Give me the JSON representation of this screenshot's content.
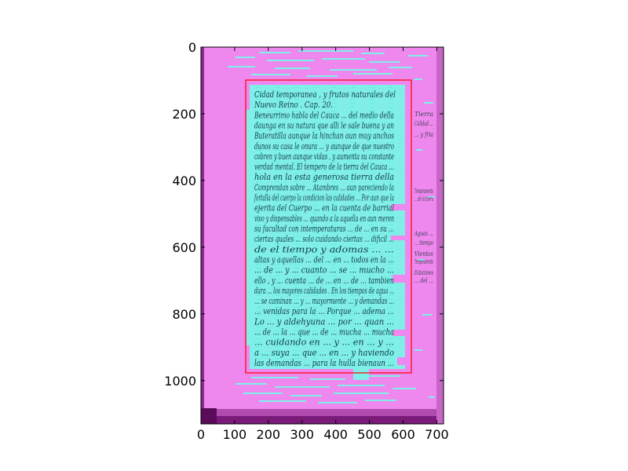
{
  "figure": {
    "x_ticks": [
      "0",
      "100",
      "200",
      "300",
      "400",
      "500",
      "600",
      "700"
    ],
    "y_ticks": [
      "0",
      "200",
      "400",
      "600",
      "800",
      "1000"
    ],
    "x_tick_values": [
      0,
      100,
      200,
      300,
      400,
      500,
      600,
      700
    ],
    "y_tick_values": [
      0,
      200,
      400,
      600,
      800,
      1000
    ],
    "x_range": [
      0,
      720
    ],
    "y_range": [
      1130,
      0
    ],
    "overlay_color": "#ee88ee",
    "text_mask_color": "#7ff0e8",
    "box_color": "#ff0000",
    "image_border_color": "#5a0c5a"
  },
  "manuscript": {
    "lines": [
      "Cidad temporanea , y frutos naturales del",
      "Nuevo Reino . Cap. 20.",
      "Beneurrimo habla del Cauca ... del medio della",
      "daunga en su natura que alli le sale buena y an",
      "Buteratilla aunque la hinchan aun muy anchos",
      "dunos su casa le onura ... y aunque de que nuestro",
      "cobren y buen aunque vidas , y aumenta su constante",
      "verdad mental. El tempero de la tierra del Cauca ...",
      "hola en la esta generosa tierra della",
      "Comprendan sobre ... Atambres ... aun pareciendo la",
      "fortalla del cuerpo la condicion las calidades ... Por aun que la",
      "ejerita del Cuerpo ... en la cuenta de barrial",
      "vivo y dispensables ... quando a la aquella en aun meren",
      "su facultad con intemperaturas ... de ... en su ...",
      "ciertas quales ... solo cuidando ciertas ... dificil ...",
      "de el tiempo y adomas ... ...",
      "altas y aquellas ... del ... en ... todos en la ...",
      "... de ... y ... cuanto ... se ... mucho ...",
      "ello , y ... cuenta ... de ... en ... de ... tambien",
      "dura ... los mayores calidades . En los tiempos de agua ...",
      "... se caminan ... y ... mayormente ... y demandas ...",
      "... venidas para la ... Porque ... adema ...",
      "Lo ... y aldehyuna ... por ... quan ...",
      "... de ... la ... que ... de ... mucha ... mucha",
      "... cuidando en ... y ... en ... y ...",
      "a ... suya ... que ... en ... y haviendo",
      "las demandas ... para la hulla bienaun ..."
    ],
    "margin_notes": [
      "Tierra",
      "Calidad ...",
      "... y fria",
      "Temperamento",
      "... de la tierra",
      "Aguas ...",
      "... tiempo",
      "Vientos",
      "Temperamento",
      "Estaciones",
      "... del ..."
    ]
  }
}
